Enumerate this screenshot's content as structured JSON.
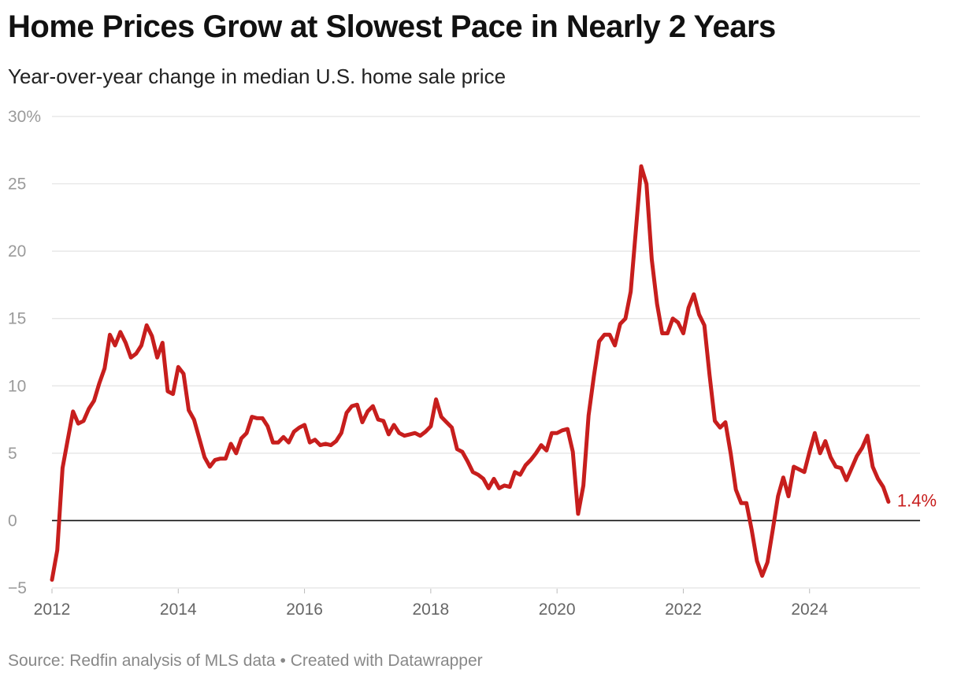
{
  "header": {
    "title": "Home Prices Grow at Slowest Pace in Nearly 2 Years",
    "subtitle": "Year-over-year change in median U.S. home sale price"
  },
  "footer": {
    "source": "Source: Redfin analysis of MLS data • Created with Datawrapper"
  },
  "chart_data": {
    "type": "line",
    "title": "Home Prices Grow at Slowest Pace in Nearly 2 Years",
    "subtitle": "Year-over-year change in median U.S. home sale price",
    "xlabel": "",
    "ylabel": "",
    "ylim": [
      -5,
      30
    ],
    "xlim": [
      2012,
      2025.75
    ],
    "grid": true,
    "legend": "none",
    "y_ticks": [
      {
        "value": -5,
        "label": "−5"
      },
      {
        "value": 0,
        "label": "0"
      },
      {
        "value": 5,
        "label": "5"
      },
      {
        "value": 10,
        "label": "10"
      },
      {
        "value": 15,
        "label": "15"
      },
      {
        "value": 20,
        "label": "20"
      },
      {
        "value": 25,
        "label": "25"
      },
      {
        "value": 30,
        "label": "30%"
      }
    ],
    "x_ticks": [
      {
        "value": 2012,
        "label": "2012"
      },
      {
        "value": 2014,
        "label": "2014"
      },
      {
        "value": 2016,
        "label": "2016"
      },
      {
        "value": 2018,
        "label": "2018"
      },
      {
        "value": 2020,
        "label": "2020"
      },
      {
        "value": 2022,
        "label": "2022"
      },
      {
        "value": 2024,
        "label": "2024"
      }
    ],
    "end_label": "1.4%",
    "series_color": "#c71e1d",
    "series": [
      {
        "name": "",
        "start_year": 2012,
        "step_months": 1,
        "values": [
          -4.4,
          -2.2,
          3.9,
          6.0,
          8.1,
          7.2,
          7.4,
          8.3,
          8.9,
          10.2,
          11.3,
          13.8,
          13.0,
          14.0,
          13.2,
          12.1,
          12.4,
          13.0,
          14.5,
          13.7,
          12.1,
          13.2,
          9.6,
          9.4,
          11.4,
          10.9,
          8.2,
          7.5,
          6.1,
          4.7,
          4.0,
          4.5,
          4.6,
          4.6,
          5.7,
          5.0,
          6.1,
          6.5,
          7.7,
          7.6,
          7.6,
          7.0,
          5.8,
          5.8,
          6.2,
          5.8,
          6.6,
          6.9,
          7.1,
          5.8,
          6.0,
          5.6,
          5.7,
          5.6,
          5.9,
          6.5,
          8.0,
          8.5,
          8.6,
          7.3,
          8.1,
          8.5,
          7.5,
          7.4,
          6.4,
          7.1,
          6.5,
          6.3,
          6.4,
          6.5,
          6.3,
          6.6,
          7.0,
          9.0,
          7.7,
          7.3,
          6.9,
          5.3,
          5.1,
          4.4,
          3.6,
          3.4,
          3.1,
          2.4,
          3.1,
          2.4,
          2.6,
          2.5,
          3.6,
          3.4,
          4.1,
          4.5,
          5.0,
          5.6,
          5.2,
          6.5,
          6.5,
          6.7,
          6.8,
          5.1,
          0.5,
          2.6,
          7.8,
          10.7,
          13.3,
          13.8,
          13.8,
          13.0,
          14.6,
          15.0,
          17.0,
          21.6,
          26.3,
          25.0,
          19.4,
          16.1,
          13.9,
          13.9,
          15.0,
          14.7,
          13.9,
          15.8,
          16.8,
          15.3,
          14.5,
          10.8,
          7.4,
          6.9,
          7.3,
          5.0,
          2.3,
          1.3,
          1.3,
          -0.7,
          -3.0,
          -4.1,
          -3.1,
          -0.7,
          1.8,
          3.2,
          1.8,
          4.0,
          3.8,
          3.6,
          5.1,
          6.5,
          5.0,
          5.9,
          4.7,
          4.0,
          3.9,
          3.0,
          3.9,
          4.8,
          5.4,
          6.3,
          4.0,
          3.1,
          2.5,
          1.4
        ]
      }
    ]
  }
}
